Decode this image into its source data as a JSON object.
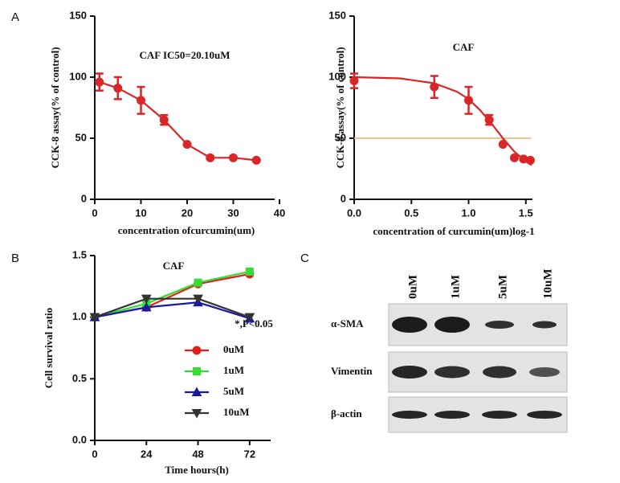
{
  "panel_labels": [
    "A",
    "B",
    "C"
  ],
  "chart_data": [
    {
      "type": "line",
      "y_label": "CCK-8 assay(% of control)",
      "x_label": "concentration ofcurcumin(um)",
      "annotations": [
        "CAF IC50=20.10uM"
      ],
      "xlim": [
        0,
        40
      ],
      "xticks": [
        0,
        10,
        20,
        30,
        40
      ],
      "ylim": [
        0,
        150
      ],
      "yticks": [
        0,
        50,
        100,
        150
      ],
      "series": [
        {
          "color": "#d92626",
          "marker": "circle",
          "line": true,
          "x": [
            1,
            5,
            10,
            15,
            20,
            25,
            30,
            35
          ],
          "values": [
            96,
            91,
            81,
            65,
            45,
            34,
            34,
            32
          ],
          "errors": [
            7,
            9,
            11,
            4,
            1,
            1,
            1,
            1
          ]
        }
      ]
    },
    {
      "type": "line",
      "y_label": "CCK-8 assay(% of control)",
      "x_label": "concentration of curcumin(um)log-1",
      "annotations": [
        "CAF"
      ],
      "xlim": [
        0,
        1.6
      ],
      "xticks": [
        {
          "value": 0,
          "label": "0.0"
        },
        0.5,
        {
          "value": 1,
          "label": "1.0"
        },
        1.5
      ],
      "ylim": [
        0,
        150
      ],
      "yticks": [
        0,
        50,
        100,
        150
      ],
      "reference_line": {
        "value": 50,
        "color": "#f2c08f"
      },
      "series": [
        {
          "color": "#d92626",
          "marker": "none",
          "line": true,
          "x": [
            0,
            0.4,
            0.7,
            0.9,
            1.0,
            1.1,
            1.2,
            1.3,
            1.4,
            1.5,
            1.55
          ],
          "values": [
            100,
            99,
            95,
            88,
            82,
            73,
            62,
            50,
            39,
            31,
            28
          ]
        },
        {
          "color": "#d92626",
          "marker": "circle",
          "line": false,
          "x": [
            0,
            0.7,
            1.0,
            1.18,
            1.3,
            1.4,
            1.48,
            1.54
          ],
          "values": [
            97,
            92,
            81,
            65,
            45,
            34,
            33,
            32
          ],
          "errors": [
            6,
            9,
            11,
            4,
            1,
            1,
            1,
            1
          ]
        }
      ]
    },
    {
      "type": "line",
      "y_label": "Cell survival ratio",
      "x_label": "Time hours(h)",
      "annotations": [
        "CAF",
        "*,P<0.05"
      ],
      "x": [
        0,
        24,
        48,
        72
      ],
      "xlim": [
        0,
        84
      ],
      "xticks": [
        0,
        24,
        48,
        72
      ],
      "ylim": [
        0,
        1.5
      ],
      "yticks": [
        {
          "value": 0,
          "label": "0.0"
        },
        0.5,
        {
          "value": 1,
          "label": "1.0"
        },
        1.5
      ],
      "series": [
        {
          "name": "0uM",
          "color": "#e02020",
          "marker": "circle",
          "line": true,
          "values": [
            1.0,
            1.08,
            1.27,
            1.35
          ]
        },
        {
          "name": "1uM",
          "color": "#33dd33",
          "marker": "square",
          "line": true,
          "values": [
            1.0,
            1.11,
            1.28,
            1.37
          ]
        },
        {
          "name": "5uM",
          "color": "#1a1aa0",
          "marker": "triangle",
          "line": true,
          "values": [
            1.0,
            1.08,
            1.12,
            0.99
          ]
        },
        {
          "name": "10uM",
          "color": "#333333",
          "marker": "triangle-down",
          "line": true,
          "values": [
            1.0,
            1.15,
            1.15,
            1.0
          ]
        }
      ]
    }
  ],
  "blot": {
    "lanes": [
      "0uM",
      "1uM",
      "5uM",
      "10uM"
    ],
    "rows": [
      "α-SMA",
      "Vimentin",
      "β-actin"
    ]
  }
}
